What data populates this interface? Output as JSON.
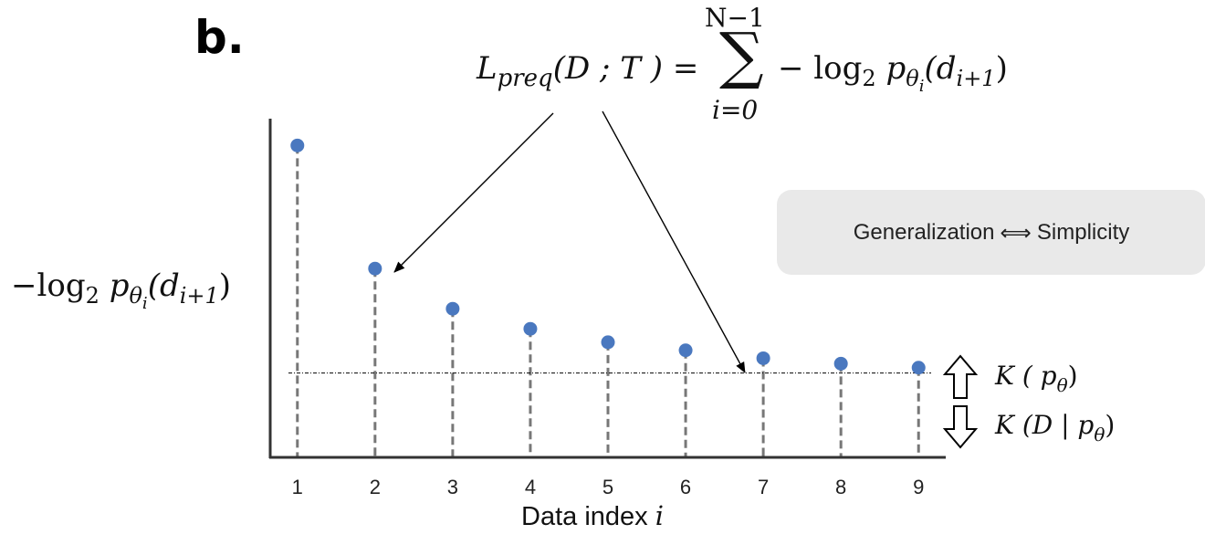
{
  "panel_label": "b.",
  "formula": {
    "lhs_main": "L",
    "lhs_sub": "preq",
    "lhs_args": "(D ; T ) =",
    "sum_upper": "N−1",
    "sum_lower": "i=0",
    "rhs_prefix": "− log",
    "rhs_log_base": "2",
    "rhs_p": "p",
    "rhs_p_sub": "θ",
    "rhs_p_subsub": "i",
    "rhs_arg_open": "(d",
    "rhs_arg_sub": "i+1",
    "rhs_arg_close": ")"
  },
  "y_label": {
    "prefix": "−log",
    "log_base": "2",
    "p": "p",
    "p_sub": "θ",
    "p_subsub": "i",
    "arg_open": "(d",
    "arg_sub": "i+1",
    "arg_close": ")"
  },
  "box": {
    "left_text": "Generalization",
    "arrow": "⟺",
    "right_text": "Simplicity"
  },
  "k_upper": {
    "prefix": "K ( p",
    "sub": "θ",
    "suffix": ")"
  },
  "k_lower": {
    "prefix": "K (D | p",
    "sub": "θ",
    "suffix": ")"
  },
  "x_axis_label": {
    "text": "Data index ",
    "var": "i"
  },
  "chart_data": {
    "type": "scatter",
    "x": [
      1,
      2,
      3,
      4,
      5,
      6,
      7,
      8,
      9
    ],
    "values": [
      10.0,
      5.4,
      3.9,
      3.15,
      2.65,
      2.35,
      2.05,
      1.85,
      1.7
    ],
    "threshold": 1.5,
    "ylim": [
      -1.65,
      11
    ],
    "xlim": [
      0.65,
      9.35
    ],
    "x_tick_labels": [
      "1",
      "2",
      "3",
      "4",
      "5",
      "6",
      "7",
      "8",
      "9"
    ],
    "xlabel": "Data index i",
    "ylabel": "−log2 pθi(di+1)",
    "grid": false,
    "legend": false
  },
  "colors": {
    "point": "#4a78bf",
    "stem": "#777777",
    "axis": "#333333",
    "box": "#e9e9e9"
  }
}
